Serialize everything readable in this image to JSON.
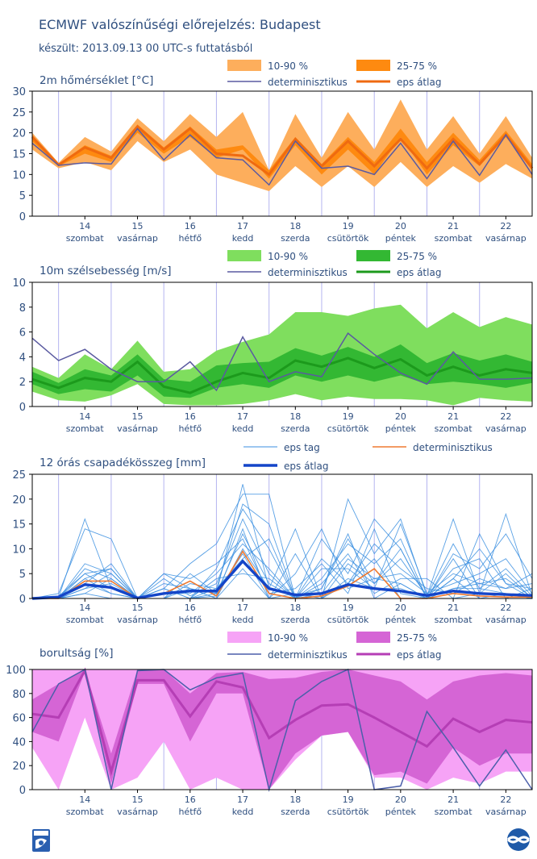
{
  "title": "ECMWF valószínűségi előrejelzés: Budapest",
  "subtitle": "készült: 2013.09.13 00 UTC-s futtatásból",
  "days": [
    {
      "num": "14",
      "name": "szombat"
    },
    {
      "num": "15",
      "name": "vasárnap"
    },
    {
      "num": "16",
      "name": "hétfő"
    },
    {
      "num": "17",
      "name": "kedd"
    },
    {
      "num": "18",
      "name": "szerda"
    },
    {
      "num": "19",
      "name": "csütörtök"
    },
    {
      "num": "20",
      "name": "péntek"
    },
    {
      "num": "21",
      "name": "szombat"
    },
    {
      "num": "22",
      "name": "vasárnap"
    }
  ],
  "colors": {
    "axis_text": "#2f4f7f",
    "grid": "#b4b4f0",
    "deterministic_line": "#5a5aa0",
    "temp_band_outer": "#fdae5c",
    "temp_band_inner": "#fe8a10",
    "temp_mean": "#ef6a10",
    "wind_band_outer": "#7fde5e",
    "wind_band_inner": "#33b833",
    "wind_mean": "#1c9a1c",
    "precip_member": "#3b8fe0",
    "precip_det": "#ef7a30",
    "precip_mean": "#1445c8",
    "cloud_band_outer": "#f6a3f6",
    "cloud_band_inner": "#d565d5",
    "cloud_mean": "#b53eb5",
    "cloud_det": "#4b5faa"
  },
  "chart_data": [
    {
      "type": "line",
      "id": "temp",
      "title": "2m hőmérséklet [°C]",
      "ylim": [
        0,
        30
      ],
      "yticks": [
        0,
        5,
        10,
        15,
        20,
        25,
        30
      ],
      "x_unit": "12 órás lépés 2013.09.13 00 UTC-től",
      "x": [
        0,
        1,
        2,
        3,
        4,
        5,
        6,
        7,
        8,
        9,
        10,
        11,
        12,
        13,
        14,
        15,
        16,
        17,
        18,
        19
      ],
      "legend": {
        "band_outer": "10-90 %",
        "band_inner": "25-75 %",
        "det": "determinisztikus",
        "mean": "eps átlag"
      },
      "p10": [
        16,
        11.5,
        13,
        11,
        18,
        13,
        16,
        10,
        8,
        6,
        12,
        7,
        12,
        7,
        13,
        7,
        12,
        8,
        12.5,
        9
      ],
      "p90": [
        20,
        12.8,
        19,
        15.5,
        23.5,
        18,
        24.5,
        19,
        25,
        11,
        24.5,
        14,
        25,
        16,
        28,
        16,
        24,
        15,
        24,
        14
      ],
      "p25": [
        18,
        12,
        15,
        13,
        20,
        15,
        19,
        14,
        16,
        9,
        17,
        10,
        16,
        10,
        19,
        10,
        17,
        12,
        19,
        11
      ],
      "p75": [
        19.5,
        12.5,
        17,
        14.5,
        22,
        16.5,
        21.5,
        16,
        17,
        11,
        19,
        12.5,
        19,
        13,
        21,
        13,
        20,
        13.5,
        20.5,
        12.5
      ],
      "mean": [
        19,
        12.3,
        16.5,
        14,
        21.5,
        16,
        21,
        15,
        14.5,
        10,
        18.5,
        12,
        18,
        12,
        18.5,
        11.5,
        18.5,
        12.5,
        19.5,
        11.5
      ],
      "det": [
        17.5,
        12.2,
        12.8,
        12.5,
        21,
        13.5,
        19.5,
        14,
        13.5,
        7.5,
        18,
        11.5,
        12,
        10,
        17.5,
        9,
        18,
        9.8,
        19.5,
        10
      ]
    },
    {
      "type": "line",
      "id": "wind",
      "title": "10m szélsebesség [m/s]",
      "ylim": [
        0,
        10
      ],
      "yticks": [
        0,
        2,
        4,
        6,
        8,
        10
      ],
      "x": [
        0,
        1,
        2,
        3,
        4,
        5,
        6,
        7,
        8,
        9,
        10,
        11,
        12,
        13,
        14,
        15,
        16,
        17,
        18,
        19
      ],
      "legend": {
        "band_outer": "10-90 %",
        "band_inner": "25-75 %",
        "det": "determinisztikus",
        "mean": "eps átlag"
      },
      "p10": [
        1.2,
        0.5,
        0.4,
        0.9,
        1.8,
        0.2,
        0.1,
        0.1,
        0.2,
        0.5,
        1,
        0.5,
        0.8,
        0.6,
        0.6,
        0.5,
        0.1,
        0.7,
        0.5,
        0.4
      ],
      "p90": [
        3.2,
        2.3,
        4.2,
        3,
        5.3,
        2.8,
        3,
        4.5,
        5.2,
        5.8,
        7.6,
        7.6,
        7.3,
        7.9,
        8.2,
        6.3,
        7.6,
        6.4,
        7.2,
        6.6
      ],
      "p25": [
        1.8,
        1,
        1.4,
        1.2,
        2.5,
        0.8,
        0.7,
        1.5,
        1.8,
        1.5,
        2.5,
        2,
        2.5,
        2,
        2.5,
        1.8,
        2,
        1.8,
        1.5,
        1.9
      ],
      "p75": [
        2.8,
        1.9,
        3,
        2.5,
        4.2,
        2.2,
        2,
        3.3,
        3.5,
        3.6,
        4.7,
        4.1,
        4.8,
        4,
        5,
        3.5,
        4.3,
        3.7,
        4.2,
        3.6
      ],
      "mean": [
        2.2,
        1.5,
        2.3,
        2,
        3.6,
        1.6,
        1.1,
        2,
        2.7,
        2.3,
        3.7,
        3.2,
        3.9,
        3.1,
        3.8,
        2.5,
        3.2,
        2.5,
        3,
        2.7
      ],
      "det": [
        5.5,
        3.7,
        4.6,
        3,
        2,
        2,
        3.6,
        1.3,
        5.6,
        2,
        2.8,
        2.4,
        5.9,
        4.2,
        2.7,
        1.8,
        4.4,
        2.2,
        2.2,
        2.3
      ]
    },
    {
      "type": "line",
      "id": "precip",
      "title": "12 órás csapadékösszeg [mm]",
      "ylim": [
        0,
        25
      ],
      "yticks": [
        0,
        5,
        10,
        15,
        20,
        25
      ],
      "x": [
        0,
        1,
        2,
        3,
        4,
        5,
        6,
        7,
        8,
        9,
        10,
        11,
        12,
        13,
        14,
        15,
        16,
        17,
        18,
        19
      ],
      "legend": {
        "members": "eps tag",
        "det": "determinisztikus",
        "mean": "eps átlag"
      },
      "mean": [
        0,
        0.3,
        2.8,
        2.2,
        0.1,
        1,
        1.5,
        1.5,
        7.5,
        2,
        0.7,
        1,
        2.8,
        2,
        1.5,
        0.6,
        1.5,
        1,
        0.8,
        0.6
      ],
      "det": [
        0,
        0,
        3.5,
        3.5,
        0,
        1,
        3.5,
        0.5,
        9.5,
        1,
        0,
        0.5,
        2.5,
        6,
        0,
        0,
        1,
        0.5,
        0.3,
        0.3
      ],
      "members": [
        [
          0,
          0.2,
          16,
          2,
          0,
          5,
          2,
          1,
          23,
          2,
          0.5,
          2,
          12,
          3,
          8,
          0.5,
          16,
          1,
          17,
          0.5
        ],
        [
          0,
          1,
          14,
          12,
          0,
          2,
          7,
          11,
          21,
          21,
          0,
          0,
          20,
          9,
          16,
          0.5,
          11,
          2,
          6,
          0.5
        ],
        [
          0,
          0,
          7,
          5,
          0,
          0,
          3,
          2,
          19,
          15,
          0,
          4,
          11,
          7,
          12,
          0,
          9,
          6,
          13,
          4
        ],
        [
          0,
          0,
          6,
          4,
          0,
          0,
          0,
          6,
          18,
          10,
          0,
          12,
          5,
          16,
          10,
          0,
          4,
          10,
          3,
          2
        ],
        [
          0,
          0.5,
          5,
          6,
          0,
          4,
          0.5,
          3,
          16,
          5,
          0,
          1,
          8,
          4,
          5,
          1,
          5,
          3,
          4,
          0.2
        ],
        [
          0,
          0,
          4,
          1,
          0,
          2,
          0,
          0.5,
          14,
          0,
          5,
          14,
          2,
          4,
          3,
          0,
          2,
          2,
          1,
          0
        ],
        [
          0,
          0,
          3,
          7,
          0,
          0,
          5,
          1,
          13,
          3,
          0,
          6,
          6,
          2,
          15,
          1,
          3,
          5,
          8,
          1
        ],
        [
          0,
          0,
          2,
          3,
          0,
          1,
          1,
          5,
          11,
          6,
          0,
          8,
          3,
          11,
          6,
          2,
          1,
          4,
          2,
          3
        ],
        [
          0,
          0,
          5,
          2,
          0,
          3,
          2,
          0,
          10,
          2,
          14,
          0,
          4,
          2,
          2,
          0,
          6,
          8,
          0,
          0
        ],
        [
          0,
          0,
          1,
          4,
          0,
          0,
          0,
          2,
          8,
          12,
          0,
          3,
          9,
          1,
          4,
          4,
          0,
          1,
          5,
          0
        ],
        [
          0,
          0,
          4,
          6,
          0,
          5,
          4,
          7,
          12,
          1,
          2,
          7,
          1,
          14,
          1,
          0,
          2,
          3,
          2,
          5
        ],
        [
          0,
          0,
          3,
          1,
          0,
          0,
          2,
          0,
          6,
          0,
          9,
          0,
          7,
          3,
          10,
          0,
          8,
          0,
          1,
          0
        ],
        [
          0,
          0,
          2,
          5,
          0,
          2,
          0,
          4,
          5,
          4,
          0,
          2,
          13,
          0,
          3,
          0,
          0,
          13,
          3,
          0
        ],
        [
          0,
          0,
          1,
          0,
          0,
          0,
          0,
          1,
          9,
          0,
          1,
          0,
          3,
          8,
          0,
          0,
          4,
          0,
          0,
          2
        ]
      ]
    },
    {
      "type": "line",
      "id": "cloud",
      "title": "borultság [%]",
      "ylim": [
        0,
        100
      ],
      "yticks": [
        0,
        20,
        40,
        60,
        80,
        100
      ],
      "x": [
        0,
        1,
        2,
        3,
        4,
        5,
        6,
        7,
        8,
        9,
        10,
        11,
        12,
        13,
        14,
        15,
        16,
        17,
        18,
        19
      ],
      "legend": {
        "band_outer": "10-90 %",
        "band_inner": "25-75 %",
        "det": "determinisztikus",
        "mean": "eps átlag"
      },
      "p10": [
        35,
        0,
        60,
        0,
        10,
        40,
        0,
        10,
        0,
        0,
        25,
        45,
        48,
        10,
        10,
        0,
        10,
        5,
        15,
        15
      ],
      "p90": [
        100,
        100,
        100,
        100,
        100,
        100,
        100,
        100,
        100,
        100,
        100,
        100,
        100,
        100,
        100,
        100,
        100,
        100,
        100,
        100
      ],
      "p25": [
        48,
        40,
        98,
        5,
        88,
        88,
        40,
        80,
        80,
        0,
        30,
        45,
        48,
        12,
        15,
        5,
        35,
        20,
        30,
        30
      ],
      "p75": [
        75,
        88,
        100,
        30,
        100,
        100,
        80,
        97,
        98,
        92,
        93,
        98,
        100,
        95,
        90,
        75,
        90,
        95,
        97,
        95
      ],
      "mean": [
        63,
        60,
        99,
        15,
        91,
        91,
        61,
        90,
        85,
        43,
        58,
        70,
        71,
        60,
        48,
        36,
        59,
        48,
        58,
        56
      ],
      "det": [
        48,
        88,
        100,
        0,
        99,
        100,
        83,
        93,
        97,
        0,
        74,
        90,
        100,
        0,
        3,
        65,
        35,
        3,
        33,
        0
      ]
    }
  ]
}
